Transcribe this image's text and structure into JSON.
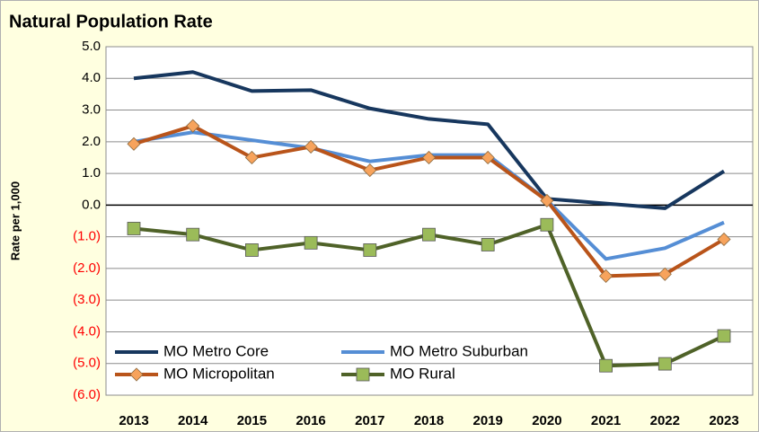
{
  "chart_data": {
    "type": "line",
    "title": "Natural Population Rate",
    "y_label": "Rate per 1,000",
    "categories": [
      "2013",
      "2014",
      "2015",
      "2016",
      "2017",
      "2018",
      "2019",
      "2020",
      "2021",
      "2022",
      "2023"
    ],
    "series": [
      {
        "name": "MO Metro Core",
        "color": "#17375e",
        "marker": null,
        "values": [
          4.0,
          4.2,
          3.6,
          3.63,
          3.05,
          2.72,
          2.55,
          0.2,
          0.05,
          -0.1,
          1.07
        ]
      },
      {
        "name": "MO Metro Suburban",
        "color": "#558ed5",
        "marker": null,
        "values": [
          2.0,
          2.3,
          2.05,
          1.8,
          1.38,
          1.58,
          1.58,
          0.15,
          -1.7,
          -1.36,
          -0.55
        ]
      },
      {
        "name": "MO Micropolitan",
        "color": "#b9541a",
        "marker": "diamond",
        "marker_color": "#f7a35c",
        "values": [
          1.93,
          2.5,
          1.5,
          1.84,
          1.1,
          1.5,
          1.5,
          0.14,
          -2.24,
          -2.18,
          -1.08
        ]
      },
      {
        "name": "MO Rural",
        "color": "#4f6228",
        "marker": "square",
        "marker_color": "#9bbb59",
        "values": [
          -0.74,
          -0.93,
          -1.42,
          -1.19,
          -1.42,
          -0.93,
          -1.25,
          -0.62,
          -5.07,
          -5.01,
          -4.13
        ]
      }
    ],
    "ylim": [
      -6,
      5
    ],
    "yticks": [
      {
        "value": 5,
        "label": "5.0"
      },
      {
        "value": 4,
        "label": "4.0"
      },
      {
        "value": 3,
        "label": "3.0"
      },
      {
        "value": 2,
        "label": "2.0"
      },
      {
        "value": 1,
        "label": "1.0"
      },
      {
        "value": 0,
        "label": "0.0"
      },
      {
        "value": -1,
        "label": "(1.0)"
      },
      {
        "value": -2,
        "label": "(2.0)"
      },
      {
        "value": -3,
        "label": "(3.0)"
      },
      {
        "value": -4,
        "label": "(4.0)"
      },
      {
        "value": -5,
        "label": "(5.0)"
      },
      {
        "value": -6,
        "label": "(6.0)"
      }
    ],
    "negative_tick_color": "#ff0000",
    "grid": true,
    "legend": "lower left"
  }
}
